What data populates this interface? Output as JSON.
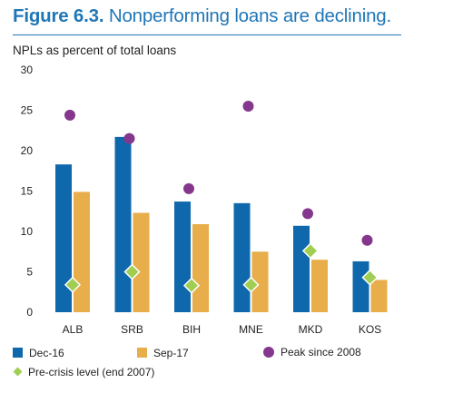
{
  "figure": {
    "number": "Figure 6.3.",
    "caption": "Nonperforming loans are declining.",
    "unit_label": "NPLs as percent of total loans"
  },
  "colors": {
    "title": "#1f76b7",
    "dec16": "#0f68ac",
    "sep17": "#e8ae4b",
    "peak": "#84378c",
    "precrisis": "#9fce52"
  },
  "chart_data": {
    "type": "bar",
    "categories": [
      "ALB",
      "SRB",
      "BIH",
      "MNE",
      "MKD",
      "KOS"
    ],
    "ylim": [
      0,
      30
    ],
    "yticks": [
      0,
      5,
      10,
      15,
      20,
      25,
      30
    ],
    "grid": false,
    "series": [
      {
        "name": "Dec-16",
        "type": "bar",
        "values": [
          18.3,
          21.7,
          13.7,
          13.5,
          10.7,
          6.3
        ]
      },
      {
        "name": "Sep-17",
        "type": "bar",
        "values": [
          14.9,
          12.3,
          10.9,
          7.5,
          6.5,
          4.0
        ]
      },
      {
        "name": "Peak since 2008",
        "type": "marker-circle",
        "values": [
          24.4,
          21.5,
          15.3,
          25.5,
          12.2,
          8.9
        ]
      },
      {
        "name": "Pre-crisis level (end 2007)",
        "type": "marker-diamond",
        "values": [
          3.4,
          5.0,
          3.3,
          3.4,
          7.6,
          4.3
        ]
      }
    ],
    "legend_position": "bottom"
  },
  "legend": {
    "dec16": "Dec-16",
    "sep17": "Sep-17",
    "peak": "Peak since 2008",
    "precrisis": "Pre-crisis level (end 2007)"
  }
}
